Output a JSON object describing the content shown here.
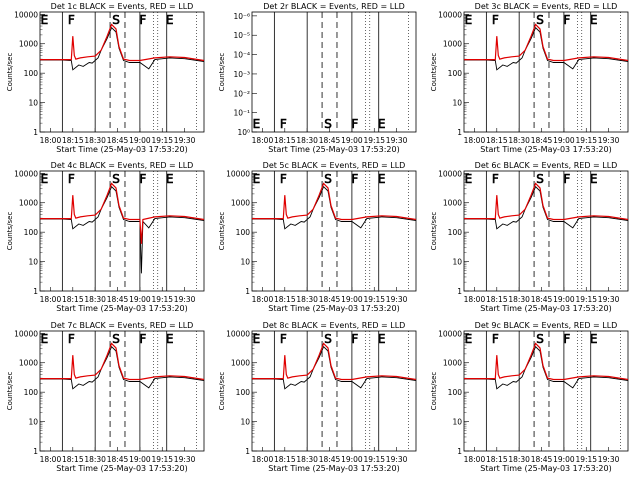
{
  "figure": {
    "colors": {
      "events": "#000000",
      "lld": "#e00000",
      "background": "#ffffff"
    },
    "x_ticks": [
      "18:00",
      "18:15",
      "18:30",
      "18:45",
      "19:00",
      "19:15",
      "19:30"
    ],
    "xlabel": "Start Time (25-May-03 17:53:20)",
    "ylabel": "Counts/sec",
    "y_ticks_main": [
      "1",
      "10",
      "100",
      "1000",
      "10000"
    ],
    "y_ticks_2r": [
      "10⁰",
      "10⁻¹",
      "10⁻²",
      "10⁻³",
      "10⁻⁴",
      "10⁻⁵",
      "10⁻⁶"
    ]
  },
  "chart_data": [
    {
      "type": "line",
      "title": "Det 1c BLACK = Events, RED = LLD",
      "xlabel": "Start Time (25-May-03 17:53:20)",
      "ylabel": "Counts/sec",
      "y_scale": "log",
      "ylim": [
        1,
        12000
      ],
      "xlim_minutes": [
        -7,
        103
      ],
      "markers": [
        "E",
        "F",
        "S",
        "F",
        "E"
      ],
      "series": [
        {
          "name": "Events",
          "color": "#000000",
          "x": [
            -7,
            8,
            14,
            15,
            19,
            22,
            26,
            28,
            32,
            34,
            38,
            41,
            44,
            46,
            49,
            53,
            60,
            66,
            70,
            80,
            90,
            103
          ],
          "y": [
            280,
            280,
            270,
            130,
            190,
            170,
            230,
            220,
            330,
            600,
            1500,
            3500,
            2500,
            700,
            270,
            230,
            230,
            140,
            290,
            330,
            310,
            250
          ]
        },
        {
          "name": "LLD",
          "color": "#e00000",
          "x": [
            -7,
            8,
            14,
            15,
            16,
            17,
            20,
            25,
            30,
            34,
            38,
            41,
            44,
            46,
            49,
            53,
            60,
            70,
            80,
            90,
            103
          ],
          "y": [
            290,
            290,
            290,
            1800,
            400,
            300,
            330,
            360,
            380,
            600,
            1800,
            4500,
            3200,
            800,
            300,
            270,
            270,
            330,
            360,
            340,
            270
          ]
        }
      ]
    },
    {
      "type": "line",
      "title": "Det 2r BLACK = Events, RED = LLD",
      "xlabel": "Start Time (25-May-03 17:53:20)",
      "ylabel": "Counts/sec",
      "y_scale": "log",
      "markers": [
        "E",
        "F",
        "S",
        "F",
        "E"
      ],
      "series": []
    },
    {
      "type": "line",
      "title": "Det 3c BLACK = Events, RED = LLD",
      "xlabel": "Start Time (25-May-03 17:53:20)",
      "ylabel": "Counts/sec",
      "y_scale": "log",
      "ylim": [
        1,
        12000
      ],
      "xlim_minutes": [
        -7,
        103
      ],
      "markers": [
        "E",
        "F",
        "S",
        "F",
        "E"
      ],
      "series": [
        {
          "name": "Events",
          "color": "#000000",
          "x": [
            -7,
            8,
            14,
            15,
            19,
            22,
            26,
            28,
            32,
            34,
            38,
            41,
            44,
            46,
            49,
            53,
            60,
            66,
            70,
            80,
            90,
            103
          ],
          "y": [
            280,
            280,
            270,
            130,
            190,
            170,
            230,
            220,
            330,
            600,
            1500,
            3500,
            2500,
            700,
            270,
            230,
            230,
            140,
            290,
            330,
            310,
            250
          ]
        },
        {
          "name": "LLD",
          "color": "#e00000",
          "x": [
            -7,
            8,
            14,
            15,
            16,
            17,
            20,
            25,
            30,
            34,
            38,
            41,
            44,
            46,
            49,
            53,
            60,
            70,
            80,
            90,
            103
          ],
          "y": [
            290,
            290,
            290,
            1800,
            400,
            300,
            330,
            360,
            380,
            600,
            1800,
            4500,
            3200,
            800,
            300,
            270,
            270,
            330,
            360,
            340,
            270
          ]
        }
      ]
    },
    {
      "type": "line",
      "title": "Det 4c BLACK = Events, RED = LLD",
      "xlabel": "Start Time (25-May-03 17:53:20)",
      "ylabel": "Counts/sec",
      "y_scale": "log",
      "ylim": [
        1,
        12000
      ],
      "xlim_minutes": [
        -7,
        103
      ],
      "markers": [
        "E",
        "F",
        "S",
        "F",
        "E"
      ],
      "series": [
        {
          "name": "Events",
          "color": "#000000",
          "x": [
            -7,
            8,
            14,
            15,
            19,
            22,
            26,
            28,
            32,
            34,
            38,
            41,
            44,
            46,
            49,
            53,
            60,
            61,
            62,
            66,
            70,
            80,
            90,
            103
          ],
          "y": [
            280,
            280,
            270,
            130,
            190,
            170,
            230,
            220,
            330,
            600,
            1500,
            3500,
            2500,
            700,
            270,
            230,
            230,
            4,
            230,
            140,
            290,
            330,
            310,
            250
          ]
        },
        {
          "name": "LLD",
          "color": "#e00000",
          "x": [
            -7,
            8,
            14,
            15,
            16,
            17,
            20,
            25,
            30,
            34,
            38,
            41,
            44,
            46,
            49,
            53,
            60,
            61,
            62,
            70,
            80,
            90,
            103
          ],
          "y": [
            290,
            290,
            290,
            1800,
            400,
            300,
            330,
            360,
            380,
            600,
            1800,
            4500,
            3200,
            800,
            300,
            270,
            270,
            40,
            270,
            330,
            360,
            340,
            270
          ]
        }
      ]
    },
    {
      "type": "line",
      "title": "Det 5c BLACK = Events, RED = LLD",
      "xlabel": "Start Time (25-May-03 17:53:20)",
      "ylabel": "Counts/sec",
      "y_scale": "log",
      "ylim": [
        1,
        12000
      ],
      "xlim_minutes": [
        -7,
        103
      ],
      "markers": [
        "E",
        "F",
        "S",
        "F",
        "E"
      ],
      "series": [
        {
          "name": "Events",
          "color": "#000000",
          "x": [
            -7,
            8,
            14,
            15,
            19,
            22,
            26,
            28,
            32,
            34,
            38,
            41,
            44,
            46,
            49,
            53,
            60,
            66,
            70,
            80,
            90,
            103
          ],
          "y": [
            280,
            280,
            270,
            130,
            190,
            170,
            230,
            220,
            330,
            600,
            1500,
            3500,
            2500,
            700,
            270,
            230,
            230,
            140,
            290,
            330,
            310,
            250
          ]
        },
        {
          "name": "LLD",
          "color": "#e00000",
          "x": [
            -7,
            8,
            14,
            15,
            16,
            17,
            20,
            25,
            30,
            34,
            38,
            41,
            44,
            46,
            49,
            53,
            60,
            70,
            80,
            90,
            103
          ],
          "y": [
            290,
            290,
            290,
            1800,
            400,
            300,
            330,
            360,
            380,
            600,
            1800,
            4500,
            3200,
            800,
            300,
            270,
            270,
            330,
            360,
            340,
            270
          ]
        }
      ]
    },
    {
      "type": "line",
      "title": "Det 6c BLACK = Events, RED = LLD",
      "xlabel": "Start Time (25-May-03 17:53:20)",
      "ylabel": "Counts/sec",
      "y_scale": "log",
      "ylim": [
        1,
        12000
      ],
      "xlim_minutes": [
        -7,
        103
      ],
      "markers": [
        "E",
        "F",
        "S",
        "F",
        "E"
      ],
      "series": [
        {
          "name": "Events",
          "color": "#000000",
          "x": [
            -7,
            8,
            14,
            15,
            19,
            22,
            26,
            28,
            32,
            34,
            38,
            41,
            44,
            46,
            49,
            53,
            60,
            66,
            70,
            80,
            90,
            103
          ],
          "y": [
            280,
            280,
            270,
            130,
            190,
            170,
            230,
            220,
            330,
            600,
            1500,
            3500,
            2500,
            700,
            270,
            230,
            230,
            140,
            290,
            330,
            310,
            250
          ]
        },
        {
          "name": "LLD",
          "color": "#e00000",
          "x": [
            -7,
            8,
            14,
            15,
            16,
            17,
            20,
            25,
            30,
            34,
            38,
            41,
            44,
            46,
            49,
            53,
            60,
            70,
            80,
            90,
            103
          ],
          "y": [
            290,
            290,
            290,
            1800,
            400,
            300,
            330,
            360,
            380,
            600,
            1800,
            4500,
            3200,
            800,
            300,
            270,
            270,
            330,
            360,
            340,
            270
          ]
        }
      ]
    },
    {
      "type": "line",
      "title": "Det 7c BLACK = Events, RED = LLD",
      "xlabel": "Start Time (25-May-03 17:53:20)",
      "ylabel": "Counts/sec",
      "y_scale": "log",
      "ylim": [
        1,
        12000
      ],
      "xlim_minutes": [
        -7,
        103
      ],
      "markers": [
        "E",
        "F",
        "S",
        "F",
        "E"
      ],
      "series": [
        {
          "name": "Events",
          "color": "#000000",
          "x": [
            -7,
            8,
            14,
            15,
            19,
            22,
            26,
            28,
            32,
            34,
            38,
            41,
            44,
            46,
            49,
            53,
            60,
            66,
            70,
            80,
            90,
            103
          ],
          "y": [
            280,
            280,
            270,
            130,
            190,
            170,
            230,
            220,
            330,
            600,
            1500,
            3500,
            2500,
            700,
            270,
            230,
            230,
            140,
            290,
            330,
            310,
            250
          ]
        },
        {
          "name": "LLD",
          "color": "#e00000",
          "x": [
            -7,
            8,
            14,
            15,
            16,
            17,
            20,
            25,
            30,
            34,
            38,
            41,
            44,
            46,
            49,
            53,
            60,
            70,
            80,
            90,
            103
          ],
          "y": [
            290,
            290,
            290,
            1800,
            400,
            300,
            330,
            360,
            380,
            600,
            1800,
            4500,
            3200,
            800,
            300,
            270,
            270,
            330,
            360,
            340,
            270
          ]
        }
      ]
    },
    {
      "type": "line",
      "title": "Det 8c BLACK = Events, RED = LLD",
      "xlabel": "Start Time (25-May-03 17:53:20)",
      "ylabel": "Counts/sec",
      "y_scale": "log",
      "ylim": [
        1,
        12000
      ],
      "xlim_minutes": [
        -7,
        103
      ],
      "markers": [
        "E",
        "F",
        "S",
        "F",
        "E"
      ],
      "series": [
        {
          "name": "Events",
          "color": "#000000",
          "x": [
            -7,
            8,
            14,
            15,
            19,
            22,
            26,
            28,
            32,
            34,
            38,
            41,
            44,
            46,
            49,
            53,
            60,
            66,
            70,
            80,
            90,
            103
          ],
          "y": [
            280,
            280,
            270,
            130,
            190,
            170,
            230,
            220,
            330,
            600,
            1500,
            3500,
            2500,
            700,
            270,
            230,
            230,
            140,
            290,
            330,
            310,
            250
          ]
        },
        {
          "name": "LLD",
          "color": "#e00000",
          "x": [
            -7,
            8,
            14,
            15,
            16,
            17,
            20,
            25,
            30,
            34,
            38,
            41,
            44,
            46,
            49,
            53,
            60,
            70,
            80,
            90,
            103
          ],
          "y": [
            290,
            290,
            290,
            1800,
            400,
            300,
            330,
            360,
            380,
            600,
            1800,
            4500,
            3200,
            800,
            300,
            270,
            270,
            330,
            360,
            340,
            270
          ]
        }
      ]
    },
    {
      "type": "line",
      "title": "Det 9c BLACK = Events, RED = LLD",
      "xlabel": "Start Time (25-May-03 17:53:20)",
      "ylabel": "Counts/sec",
      "y_scale": "log",
      "ylim": [
        1,
        12000
      ],
      "xlim_minutes": [
        -7,
        103
      ],
      "markers": [
        "E",
        "F",
        "S",
        "F",
        "E"
      ],
      "series": [
        {
          "name": "Events",
          "color": "#000000",
          "x": [
            -7,
            8,
            14,
            15,
            19,
            22,
            26,
            28,
            32,
            34,
            38,
            41,
            44,
            46,
            49,
            53,
            60,
            66,
            70,
            80,
            90,
            103
          ],
          "y": [
            280,
            280,
            270,
            130,
            190,
            170,
            230,
            220,
            330,
            600,
            1500,
            3500,
            2500,
            700,
            270,
            230,
            230,
            140,
            290,
            330,
            310,
            250
          ]
        },
        {
          "name": "LLD",
          "color": "#e00000",
          "x": [
            -7,
            8,
            14,
            15,
            16,
            17,
            20,
            25,
            30,
            34,
            38,
            41,
            44,
            46,
            49,
            53,
            60,
            70,
            80,
            90,
            103
          ],
          "y": [
            290,
            290,
            290,
            1800,
            400,
            300,
            330,
            360,
            380,
            600,
            1800,
            4500,
            3200,
            800,
            300,
            270,
            270,
            330,
            360,
            340,
            270
          ]
        }
      ]
    }
  ]
}
